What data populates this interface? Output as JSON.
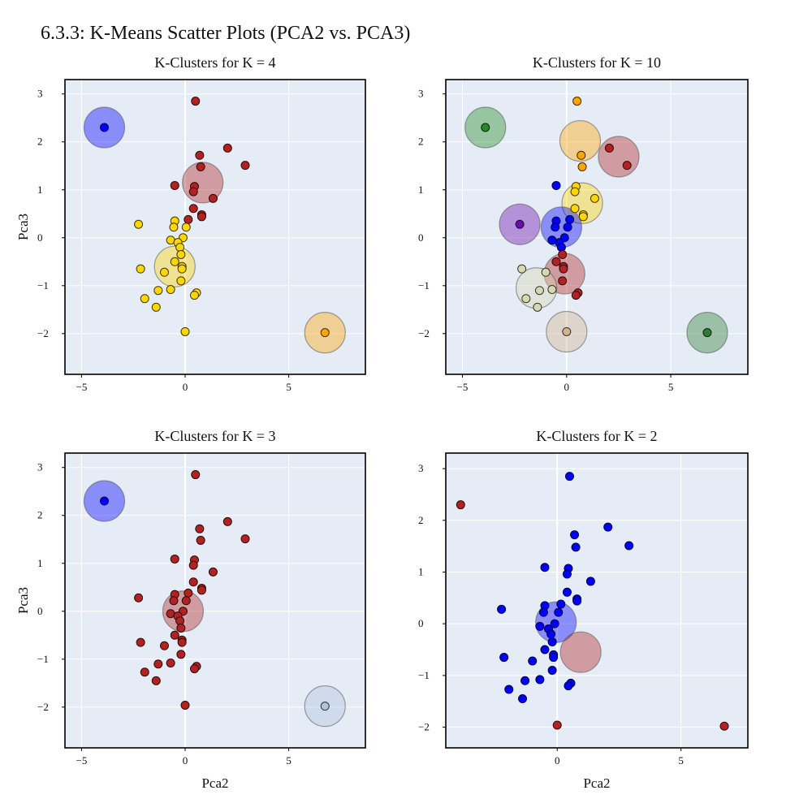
{
  "page": {
    "title": "6.3.3: K-Means Scatter Plots (PCA2 vs. PCA3)"
  },
  "chart_data": [
    {
      "type": "scatter",
      "title": "K-Clusters for K = 4",
      "xlabel": "",
      "ylabel": "Pca3",
      "xlim": [
        -5.8,
        8.7
      ],
      "ylim": [
        -2.85,
        3.3
      ],
      "xticks": [
        -5,
        0,
        5
      ],
      "yticks": [
        -2,
        -1,
        0,
        1,
        2,
        3
      ],
      "grid": true,
      "points": [
        {
          "x": -3.9,
          "y": 2.3,
          "color": "#0000ff"
        },
        {
          "x": 0.5,
          "y": 2.85,
          "color": "#b22222"
        },
        {
          "x": 2.05,
          "y": 1.87,
          "color": "#b22222"
        },
        {
          "x": 0.7,
          "y": 1.72,
          "color": "#b22222"
        },
        {
          "x": 2.9,
          "y": 1.51,
          "color": "#b22222"
        },
        {
          "x": 0.75,
          "y": 1.48,
          "color": "#b22222"
        },
        {
          "x": -0.5,
          "y": 1.09,
          "color": "#b22222"
        },
        {
          "x": 0.45,
          "y": 1.07,
          "color": "#b22222"
        },
        {
          "x": 0.4,
          "y": 0.96,
          "color": "#b22222"
        },
        {
          "x": 1.35,
          "y": 0.82,
          "color": "#b22222"
        },
        {
          "x": 0.4,
          "y": 0.61,
          "color": "#b22222"
        },
        {
          "x": 0.8,
          "y": 0.48,
          "color": "#b22222"
        },
        {
          "x": 0.8,
          "y": 0.44,
          "color": "#b22222"
        },
        {
          "x": 0.15,
          "y": 0.38,
          "color": "#b22222"
        },
        {
          "x": -2.25,
          "y": 0.28,
          "color": "#ffd700"
        },
        {
          "x": -0.5,
          "y": 0.35,
          "color": "#ffd700"
        },
        {
          "x": -0.55,
          "y": 0.22,
          "color": "#ffd700"
        },
        {
          "x": 0.05,
          "y": 0.22,
          "color": "#ffd700"
        },
        {
          "x": -0.1,
          "y": 0.0,
          "color": "#ffd700"
        },
        {
          "x": -0.7,
          "y": -0.05,
          "color": "#ffd700"
        },
        {
          "x": -0.35,
          "y": -0.1,
          "color": "#ffd700"
        },
        {
          "x": -0.25,
          "y": -0.2,
          "color": "#ffd700"
        },
        {
          "x": -0.2,
          "y": -0.35,
          "color": "#ffd700"
        },
        {
          "x": -0.5,
          "y": -0.5,
          "color": "#ffd700"
        },
        {
          "x": -0.15,
          "y": -0.6,
          "color": "#ffd700"
        },
        {
          "x": -0.15,
          "y": -0.65,
          "color": "#ffd700"
        },
        {
          "x": -2.15,
          "y": -0.65,
          "color": "#ffd700"
        },
        {
          "x": -1.0,
          "y": -0.72,
          "color": "#ffd700"
        },
        {
          "x": -0.2,
          "y": -0.9,
          "color": "#ffd700"
        },
        {
          "x": -0.7,
          "y": -1.08,
          "color": "#ffd700"
        },
        {
          "x": -1.3,
          "y": -1.1,
          "color": "#ffd700"
        },
        {
          "x": 0.55,
          "y": -1.15,
          "color": "#ffd700"
        },
        {
          "x": 0.45,
          "y": -1.2,
          "color": "#ffd700"
        },
        {
          "x": -1.95,
          "y": -1.27,
          "color": "#ffd700"
        },
        {
          "x": -1.4,
          "y": -1.45,
          "color": "#ffd700"
        },
        {
          "x": 0.0,
          "y": -1.96,
          "color": "#ffd700"
        },
        {
          "x": 6.75,
          "y": -1.98,
          "color": "#ffa500"
        }
      ],
      "centroids": [
        {
          "x": -3.9,
          "y": 2.3,
          "color": "#0000ff"
        },
        {
          "x": 0.85,
          "y": 1.15,
          "color": "#b22222"
        },
        {
          "x": -0.5,
          "y": -0.6,
          "color": "#ffd700"
        },
        {
          "x": 6.75,
          "y": -1.98,
          "color": "#ffa500"
        }
      ]
    },
    {
      "type": "scatter",
      "title": "K-Clusters for K = 10",
      "xlabel": "",
      "ylabel": "",
      "xlim": [
        -5.8,
        8.7
      ],
      "ylim": [
        -2.85,
        3.3
      ],
      "xticks": [
        -5,
        0,
        5
      ],
      "yticks": [
        -2,
        -1,
        0,
        1,
        2,
        3
      ],
      "grid": true,
      "points": [
        {
          "x": -3.9,
          "y": 2.3,
          "color": "#228b22"
        },
        {
          "x": 0.5,
          "y": 2.85,
          "color": "#ffa500"
        },
        {
          "x": 0.7,
          "y": 1.72,
          "color": "#ffa500"
        },
        {
          "x": 0.75,
          "y": 1.48,
          "color": "#ffa500"
        },
        {
          "x": 2.05,
          "y": 1.87,
          "color": "#b22222"
        },
        {
          "x": 2.9,
          "y": 1.51,
          "color": "#b22222"
        },
        {
          "x": -0.5,
          "y": 1.09,
          "color": "#0000ff"
        },
        {
          "x": 0.45,
          "y": 1.07,
          "color": "#ffd700"
        },
        {
          "x": 0.4,
          "y": 0.96,
          "color": "#ffd700"
        },
        {
          "x": 1.35,
          "y": 0.82,
          "color": "#ffd700"
        },
        {
          "x": 0.4,
          "y": 0.61,
          "color": "#ffd700"
        },
        {
          "x": 0.8,
          "y": 0.48,
          "color": "#ffd700"
        },
        {
          "x": 0.8,
          "y": 0.44,
          "color": "#ffd700"
        },
        {
          "x": 0.15,
          "y": 0.38,
          "color": "#0000ff"
        },
        {
          "x": -2.25,
          "y": 0.28,
          "color": "#6a0dad"
        },
        {
          "x": -0.5,
          "y": 0.35,
          "color": "#0000ff"
        },
        {
          "x": -0.55,
          "y": 0.22,
          "color": "#0000ff"
        },
        {
          "x": 0.05,
          "y": 0.22,
          "color": "#0000ff"
        },
        {
          "x": -0.1,
          "y": 0.0,
          "color": "#0000ff"
        },
        {
          "x": -0.7,
          "y": -0.05,
          "color": "#0000ff"
        },
        {
          "x": -0.35,
          "y": -0.1,
          "color": "#0000ff"
        },
        {
          "x": -0.25,
          "y": -0.2,
          "color": "#0000ff"
        },
        {
          "x": -0.2,
          "y": -0.35,
          "color": "#b22222"
        },
        {
          "x": -0.5,
          "y": -0.5,
          "color": "#b22222"
        },
        {
          "x": -0.15,
          "y": -0.6,
          "color": "#b22222"
        },
        {
          "x": -0.15,
          "y": -0.65,
          "color": "#b22222"
        },
        {
          "x": -2.15,
          "y": -0.65,
          "color": "#d8d8b0"
        },
        {
          "x": -1.0,
          "y": -0.72,
          "color": "#d8d8b0"
        },
        {
          "x": -0.2,
          "y": -0.9,
          "color": "#b22222"
        },
        {
          "x": -0.7,
          "y": -1.08,
          "color": "#d8d8b0"
        },
        {
          "x": -1.3,
          "y": -1.1,
          "color": "#d8d8b0"
        },
        {
          "x": 0.55,
          "y": -1.15,
          "color": "#b22222"
        },
        {
          "x": 0.45,
          "y": -1.2,
          "color": "#b22222"
        },
        {
          "x": -1.95,
          "y": -1.27,
          "color": "#d8d8b0"
        },
        {
          "x": -1.4,
          "y": -1.45,
          "color": "#d8d8b0"
        },
        {
          "x": 0.0,
          "y": -1.96,
          "color": "#d2b48c"
        },
        {
          "x": 6.75,
          "y": -1.98,
          "color": "#2e7d32"
        }
      ],
      "centroids": [
        {
          "x": -3.9,
          "y": 2.3,
          "color": "#228b22"
        },
        {
          "x": 0.65,
          "y": 2.02,
          "color": "#ffa500"
        },
        {
          "x": 2.5,
          "y": 1.69,
          "color": "#b22222"
        },
        {
          "x": 0.75,
          "y": 0.72,
          "color": "#ffd700"
        },
        {
          "x": -2.25,
          "y": 0.28,
          "color": "#6a0dad"
        },
        {
          "x": -0.25,
          "y": 0.22,
          "color": "#0000ff"
        },
        {
          "x": -0.1,
          "y": -0.75,
          "color": "#b22222"
        },
        {
          "x": -1.45,
          "y": -1.05,
          "color": "#d8d8b0"
        },
        {
          "x": 0.0,
          "y": -1.96,
          "color": "#d2b48c"
        },
        {
          "x": 6.75,
          "y": -1.98,
          "color": "#2e7d32"
        }
      ]
    },
    {
      "type": "scatter",
      "title": "K-Clusters for K = 3",
      "xlabel": "Pca2",
      "ylabel": "Pca3",
      "xlim": [
        -5.8,
        8.7
      ],
      "ylim": [
        -2.85,
        3.3
      ],
      "xticks": [
        -5,
        0,
        5
      ],
      "yticks": [
        -2,
        -1,
        0,
        1,
        2,
        3
      ],
      "grid": true,
      "points": [
        {
          "x": -3.9,
          "y": 2.3,
          "color": "#0000ff"
        },
        {
          "x": 0.5,
          "y": 2.85,
          "color": "#b22222"
        },
        {
          "x": 2.05,
          "y": 1.87,
          "color": "#b22222"
        },
        {
          "x": 0.7,
          "y": 1.72,
          "color": "#b22222"
        },
        {
          "x": 2.9,
          "y": 1.51,
          "color": "#b22222"
        },
        {
          "x": 0.75,
          "y": 1.48,
          "color": "#b22222"
        },
        {
          "x": -0.5,
          "y": 1.09,
          "color": "#b22222"
        },
        {
          "x": 0.45,
          "y": 1.07,
          "color": "#b22222"
        },
        {
          "x": 0.4,
          "y": 0.96,
          "color": "#b22222"
        },
        {
          "x": 1.35,
          "y": 0.82,
          "color": "#b22222"
        },
        {
          "x": 0.4,
          "y": 0.61,
          "color": "#b22222"
        },
        {
          "x": 0.8,
          "y": 0.48,
          "color": "#b22222"
        },
        {
          "x": 0.8,
          "y": 0.44,
          "color": "#b22222"
        },
        {
          "x": 0.15,
          "y": 0.38,
          "color": "#b22222"
        },
        {
          "x": -2.25,
          "y": 0.28,
          "color": "#b22222"
        },
        {
          "x": -0.5,
          "y": 0.35,
          "color": "#b22222"
        },
        {
          "x": -0.55,
          "y": 0.22,
          "color": "#b22222"
        },
        {
          "x": 0.05,
          "y": 0.22,
          "color": "#b22222"
        },
        {
          "x": -0.1,
          "y": 0.0,
          "color": "#b22222"
        },
        {
          "x": -0.7,
          "y": -0.05,
          "color": "#b22222"
        },
        {
          "x": -0.35,
          "y": -0.1,
          "color": "#b22222"
        },
        {
          "x": -0.25,
          "y": -0.2,
          "color": "#b22222"
        },
        {
          "x": -0.2,
          "y": -0.35,
          "color": "#b22222"
        },
        {
          "x": -0.5,
          "y": -0.5,
          "color": "#b22222"
        },
        {
          "x": -0.15,
          "y": -0.6,
          "color": "#b22222"
        },
        {
          "x": -0.15,
          "y": -0.65,
          "color": "#b22222"
        },
        {
          "x": -2.15,
          "y": -0.65,
          "color": "#b22222"
        },
        {
          "x": -1.0,
          "y": -0.72,
          "color": "#b22222"
        },
        {
          "x": -0.2,
          "y": -0.9,
          "color": "#b22222"
        },
        {
          "x": -0.7,
          "y": -1.08,
          "color": "#b22222"
        },
        {
          "x": -1.3,
          "y": -1.1,
          "color": "#b22222"
        },
        {
          "x": 0.55,
          "y": -1.15,
          "color": "#b22222"
        },
        {
          "x": 0.45,
          "y": -1.2,
          "color": "#b22222"
        },
        {
          "x": -1.95,
          "y": -1.27,
          "color": "#b22222"
        },
        {
          "x": -1.4,
          "y": -1.45,
          "color": "#b22222"
        },
        {
          "x": 0.0,
          "y": -1.96,
          "color": "#b22222"
        },
        {
          "x": 6.75,
          "y": -1.98,
          "color": "#b0c4de"
        }
      ],
      "centroids": [
        {
          "x": -3.9,
          "y": 2.3,
          "color": "#0000ff"
        },
        {
          "x": -0.1,
          "y": 0.0,
          "color": "#b22222"
        },
        {
          "x": 6.75,
          "y": -1.98,
          "color": "#b0c4de"
        }
      ]
    },
    {
      "type": "scatter",
      "title": "K-Clusters for K = 2",
      "xlabel": "Pca2",
      "ylabel": "",
      "xlim": [
        -4.5,
        7.7
      ],
      "ylim": [
        -2.4,
        3.3
      ],
      "xticks": [
        0,
        5
      ],
      "yticks": [
        -2,
        -1,
        0,
        1,
        2,
        3
      ],
      "grid": true,
      "points": [
        {
          "x": -3.9,
          "y": 2.3,
          "color": "#b22222"
        },
        {
          "x": 0.5,
          "y": 2.85,
          "color": "#0000ff"
        },
        {
          "x": 2.05,
          "y": 1.87,
          "color": "#0000ff"
        },
        {
          "x": 0.7,
          "y": 1.72,
          "color": "#0000ff"
        },
        {
          "x": 2.9,
          "y": 1.51,
          "color": "#0000ff"
        },
        {
          "x": 0.75,
          "y": 1.48,
          "color": "#0000ff"
        },
        {
          "x": -0.5,
          "y": 1.09,
          "color": "#0000ff"
        },
        {
          "x": 0.45,
          "y": 1.07,
          "color": "#0000ff"
        },
        {
          "x": 0.4,
          "y": 0.96,
          "color": "#0000ff"
        },
        {
          "x": 1.35,
          "y": 0.82,
          "color": "#0000ff"
        },
        {
          "x": 0.4,
          "y": 0.61,
          "color": "#0000ff"
        },
        {
          "x": 0.8,
          "y": 0.48,
          "color": "#0000ff"
        },
        {
          "x": 0.8,
          "y": 0.44,
          "color": "#0000ff"
        },
        {
          "x": 0.15,
          "y": 0.38,
          "color": "#0000ff"
        },
        {
          "x": -2.25,
          "y": 0.28,
          "color": "#0000ff"
        },
        {
          "x": -0.5,
          "y": 0.35,
          "color": "#0000ff"
        },
        {
          "x": -0.55,
          "y": 0.22,
          "color": "#0000ff"
        },
        {
          "x": 0.05,
          "y": 0.22,
          "color": "#0000ff"
        },
        {
          "x": -0.1,
          "y": 0.0,
          "color": "#0000ff"
        },
        {
          "x": -0.7,
          "y": -0.05,
          "color": "#0000ff"
        },
        {
          "x": -0.35,
          "y": -0.1,
          "color": "#0000ff"
        },
        {
          "x": -0.25,
          "y": -0.2,
          "color": "#0000ff"
        },
        {
          "x": -0.2,
          "y": -0.35,
          "color": "#0000ff"
        },
        {
          "x": -0.5,
          "y": -0.5,
          "color": "#0000ff"
        },
        {
          "x": -0.15,
          "y": -0.6,
          "color": "#0000ff"
        },
        {
          "x": -0.15,
          "y": -0.65,
          "color": "#0000ff"
        },
        {
          "x": -2.15,
          "y": -0.65,
          "color": "#0000ff"
        },
        {
          "x": -1.0,
          "y": -0.72,
          "color": "#0000ff"
        },
        {
          "x": -0.2,
          "y": -0.9,
          "color": "#0000ff"
        },
        {
          "x": -0.7,
          "y": -1.08,
          "color": "#0000ff"
        },
        {
          "x": -1.3,
          "y": -1.1,
          "color": "#0000ff"
        },
        {
          "x": 0.55,
          "y": -1.15,
          "color": "#0000ff"
        },
        {
          "x": 0.45,
          "y": -1.2,
          "color": "#0000ff"
        },
        {
          "x": -1.95,
          "y": -1.27,
          "color": "#0000ff"
        },
        {
          "x": -1.4,
          "y": -1.45,
          "color": "#0000ff"
        },
        {
          "x": 0.0,
          "y": -1.96,
          "color": "#b22222"
        },
        {
          "x": 6.75,
          "y": -1.98,
          "color": "#b22222"
        }
      ],
      "centroids": [
        {
          "x": -0.05,
          "y": 0.03,
          "color": "#0000ff"
        },
        {
          "x": 0.95,
          "y": -0.55,
          "color": "#b22222"
        }
      ]
    }
  ]
}
